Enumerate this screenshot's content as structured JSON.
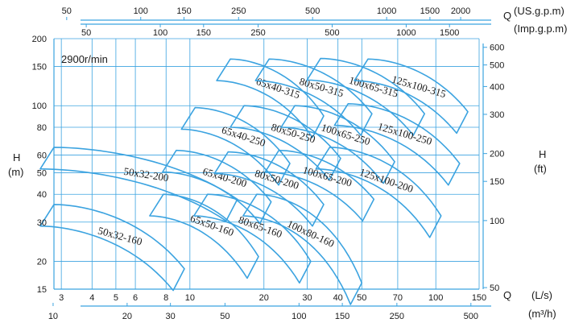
{
  "chart_data": {
    "type": "line",
    "title": "",
    "speed_label": "2900r/min",
    "scale": "log-log",
    "grid": true,
    "color": "#3ba3e0",
    "axes": {
      "x_bottom_inner": {
        "label": "(L/s)",
        "unit_prefix": "Q",
        "range": [
          2.8,
          150
        ],
        "ticks": [
          "3",
          "4",
          "5",
          "6",
          "8",
          "10",
          "20",
          "30",
          "40",
          "50",
          "70",
          "100",
          "150"
        ],
        "tick_values": [
          3,
          4,
          5,
          6,
          8,
          10,
          20,
          30,
          40,
          50,
          70,
          100,
          150
        ]
      },
      "x_bottom_outer": {
        "label": "(m³/h)",
        "range": [
          10.08,
          540
        ],
        "ticks": [
          "10",
          "20",
          "30",
          "50",
          "100",
          "150",
          "250",
          "500"
        ],
        "tick_values": [
          10,
          20,
          30,
          50,
          100,
          150,
          250,
          500
        ]
      },
      "x_top_us": {
        "label": "(US.g.p.m)",
        "unit_prefix": "Q",
        "ticks": [
          "50",
          "100",
          "150",
          "250",
          "500",
          "1000",
          "1500",
          "2000"
        ],
        "tick_values": [
          50,
          100,
          150,
          250,
          500,
          1000,
          1500,
          2000
        ]
      },
      "x_top_imp": {
        "label": "(Imp.g.p.m)",
        "ticks": [
          "50",
          "100",
          "150",
          "250",
          "500",
          "1000",
          "1500"
        ],
        "tick_values": [
          50,
          100,
          150,
          250,
          500,
          1000,
          1500
        ]
      },
      "y_left": {
        "label_line1": "H",
        "label_line2": "(m)",
        "range": [
          15,
          200
        ],
        "ticks": [
          "15",
          "20",
          "30",
          "40",
          "50",
          "60",
          "80",
          "100",
          "150",
          "200"
        ],
        "tick_values": [
          15,
          20,
          30,
          40,
          50,
          60,
          80,
          100,
          150,
          200
        ]
      },
      "y_right": {
        "label_line1": "H",
        "label_line2": "(ft)",
        "ticks": [
          "50",
          "100",
          "150",
          "200",
          "300",
          "400",
          "500",
          "600"
        ],
        "tick_values": [
          50,
          100,
          150,
          200,
          300,
          400,
          500,
          600
        ]
      }
    },
    "series": [
      {
        "name": "65x40-315",
        "qmin": 14.6,
        "qmax": 35,
        "hmax": 162,
        "hmin": 90
      },
      {
        "name": "80x50-315",
        "qmin": 21,
        "qmax": 55,
        "hmax": 162,
        "hmin": 92
      },
      {
        "name": "100x65-315",
        "qmin": 34,
        "qmax": 90,
        "hmax": 163,
        "hmin": 92
      },
      {
        "name": "125x100-315",
        "qmin": 53,
        "qmax": 135,
        "hmax": 162,
        "hmin": 94
      },
      {
        "name": "65x40-250",
        "qmin": 10.5,
        "qmax": 25.5,
        "hmax": 98,
        "hmin": 55
      },
      {
        "name": "80x50-250",
        "qmin": 16.6,
        "qmax": 41,
        "hmax": 100,
        "hmin": 58
      },
      {
        "name": "100x65-250",
        "qmin": 26.7,
        "qmax": 68,
        "hmax": 100,
        "hmin": 56
      },
      {
        "name": "125x100-250",
        "qmin": 44,
        "qmax": 125,
        "hmax": 102,
        "hmin": 55
      },
      {
        "name": "50x32-200",
        "qmin": 2.8,
        "qmax": 15.6,
        "hmax": 65,
        "hmin": 38
      },
      {
        "name": "65x40-200",
        "qmin": 8.8,
        "qmax": 21.4,
        "hmax": 63,
        "hmin": 37
      },
      {
        "name": "80x50-200",
        "qmin": 14.3,
        "qmax": 35,
        "hmax": 62,
        "hmin": 36
      },
      {
        "name": "100x65-200",
        "qmin": 23,
        "qmax": 56,
        "hmax": 63,
        "hmin": 38
      },
      {
        "name": "125x100-200",
        "qmin": 37,
        "qmax": 105,
        "hmax": 65,
        "hmin": 32
      },
      {
        "name": "50x32-160",
        "qmin": 2.8,
        "qmax": 9.5,
        "hmax": 36,
        "hmin": 18.5
      },
      {
        "name": "65x50-160",
        "qmin": 7.8,
        "qmax": 19,
        "hmax": 40,
        "hmin": 21
      },
      {
        "name": "80x65-160",
        "qmin": 11.8,
        "qmax": 31,
        "hmax": 40,
        "hmin": 20
      },
      {
        "name": "100x80-160",
        "qmin": 18.7,
        "qmax": 50,
        "hmax": 40,
        "hmin": 16
      }
    ]
  }
}
